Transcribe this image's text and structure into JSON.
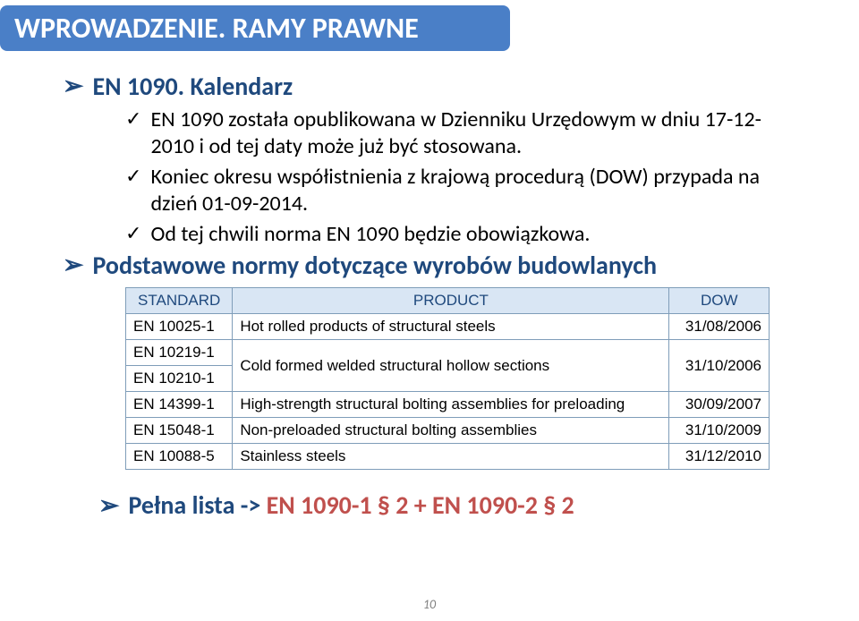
{
  "header": {
    "title": "WPROWADZENIE. RAMY PRAWNE"
  },
  "section1": {
    "heading": "EN 1090. Kalendarz",
    "items": [
      "EN 1090 została opublikowana w Dzienniku Urzędowym w dniu 17-12-2010 i od tej daty może już być stosowana.",
      "Koniec okresu współistnienia z krajową procedurą (DOW) przypada na dzień 01-09-2014.",
      "Od tej chwili norma EN 1090 będzie obowiązkowa."
    ]
  },
  "section2": {
    "heading": "Podstawowe normy dotyczące wyrobów budowlanych"
  },
  "table": {
    "columns": [
      "STANDARD",
      "PRODUCT",
      "DOW"
    ],
    "rows": [
      {
        "std": "EN 10025-1",
        "product": "Hot rolled products of structural steels",
        "dow": "31/08/2006"
      },
      {
        "std": "EN 10219-1",
        "product": "Cold formed welded structural hollow sections",
        "dow": "31/10/2006",
        "span": 2
      },
      {
        "std": "EN 10210-1"
      },
      {
        "std": "EN 14399-1",
        "product": "High-strength structural bolting assemblies for preloading",
        "dow": "30/09/2007"
      },
      {
        "std": "EN 15048-1",
        "product": "Non-preloaded structural bolting assemblies",
        "dow": "31/10/2009"
      },
      {
        "std": "EN 10088-5",
        "product": "Stainless steels",
        "dow": "31/12/2010"
      }
    ]
  },
  "footer": {
    "label": "Pełna lista -> ",
    "red": "EN 1090-1 § 2 + EN 1090-2 § 2"
  },
  "pageNumber": "10",
  "colors": {
    "headerBg": "#4a7fc7",
    "navy": "#1f497d",
    "red": "#c0504d",
    "tableHeaderBg": "#d9e6f4",
    "tableBorder": "#7f9db9"
  }
}
